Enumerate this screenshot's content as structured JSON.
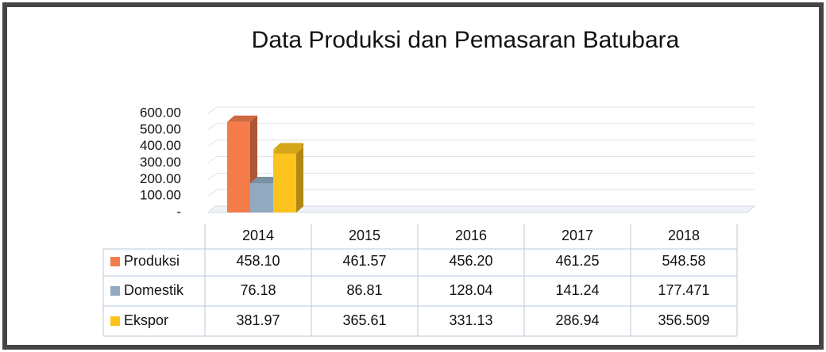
{
  "chart_data": {
    "type": "bar3d",
    "title": "Data Produksi dan Pemasaran Batubara",
    "categories": [
      "2014",
      "2015",
      "2016",
      "2017",
      "2018"
    ],
    "series": [
      {
        "name": "Produksi",
        "color": "#f47b4a",
        "values": [
          458.1,
          461.57,
          456.2,
          461.25,
          548.58
        ],
        "value_labels": [
          "458.10",
          "461.57",
          "456.20",
          "461.25",
          "548.58"
        ]
      },
      {
        "name": "Domestik",
        "color": "#91aac0",
        "values": [
          76.18,
          86.81,
          128.04,
          141.24,
          177.471
        ],
        "value_labels": [
          "76.18",
          "86.81",
          "128.04",
          "141.24",
          "177.471"
        ]
      },
      {
        "name": "Ekspor",
        "color": "#fcc31e",
        "values": [
          381.97,
          365.61,
          331.13,
          286.94,
          356.509
        ],
        "value_labels": [
          "381.97",
          "365.61",
          "331.13",
          "286.94",
          "356.509"
        ]
      }
    ],
    "ylim": [
      0,
      600
    ],
    "yticks": [
      {
        "value": 0,
        "label": "-"
      },
      {
        "value": 100,
        "label": "100.00"
      },
      {
        "value": 200,
        "label": "200.00"
      },
      {
        "value": 300,
        "label": "300.00"
      },
      {
        "value": 400,
        "label": "400.00"
      },
      {
        "value": 500,
        "label": "500.00"
      },
      {
        "value": 600,
        "label": "600.00"
      }
    ],
    "grid": true
  }
}
